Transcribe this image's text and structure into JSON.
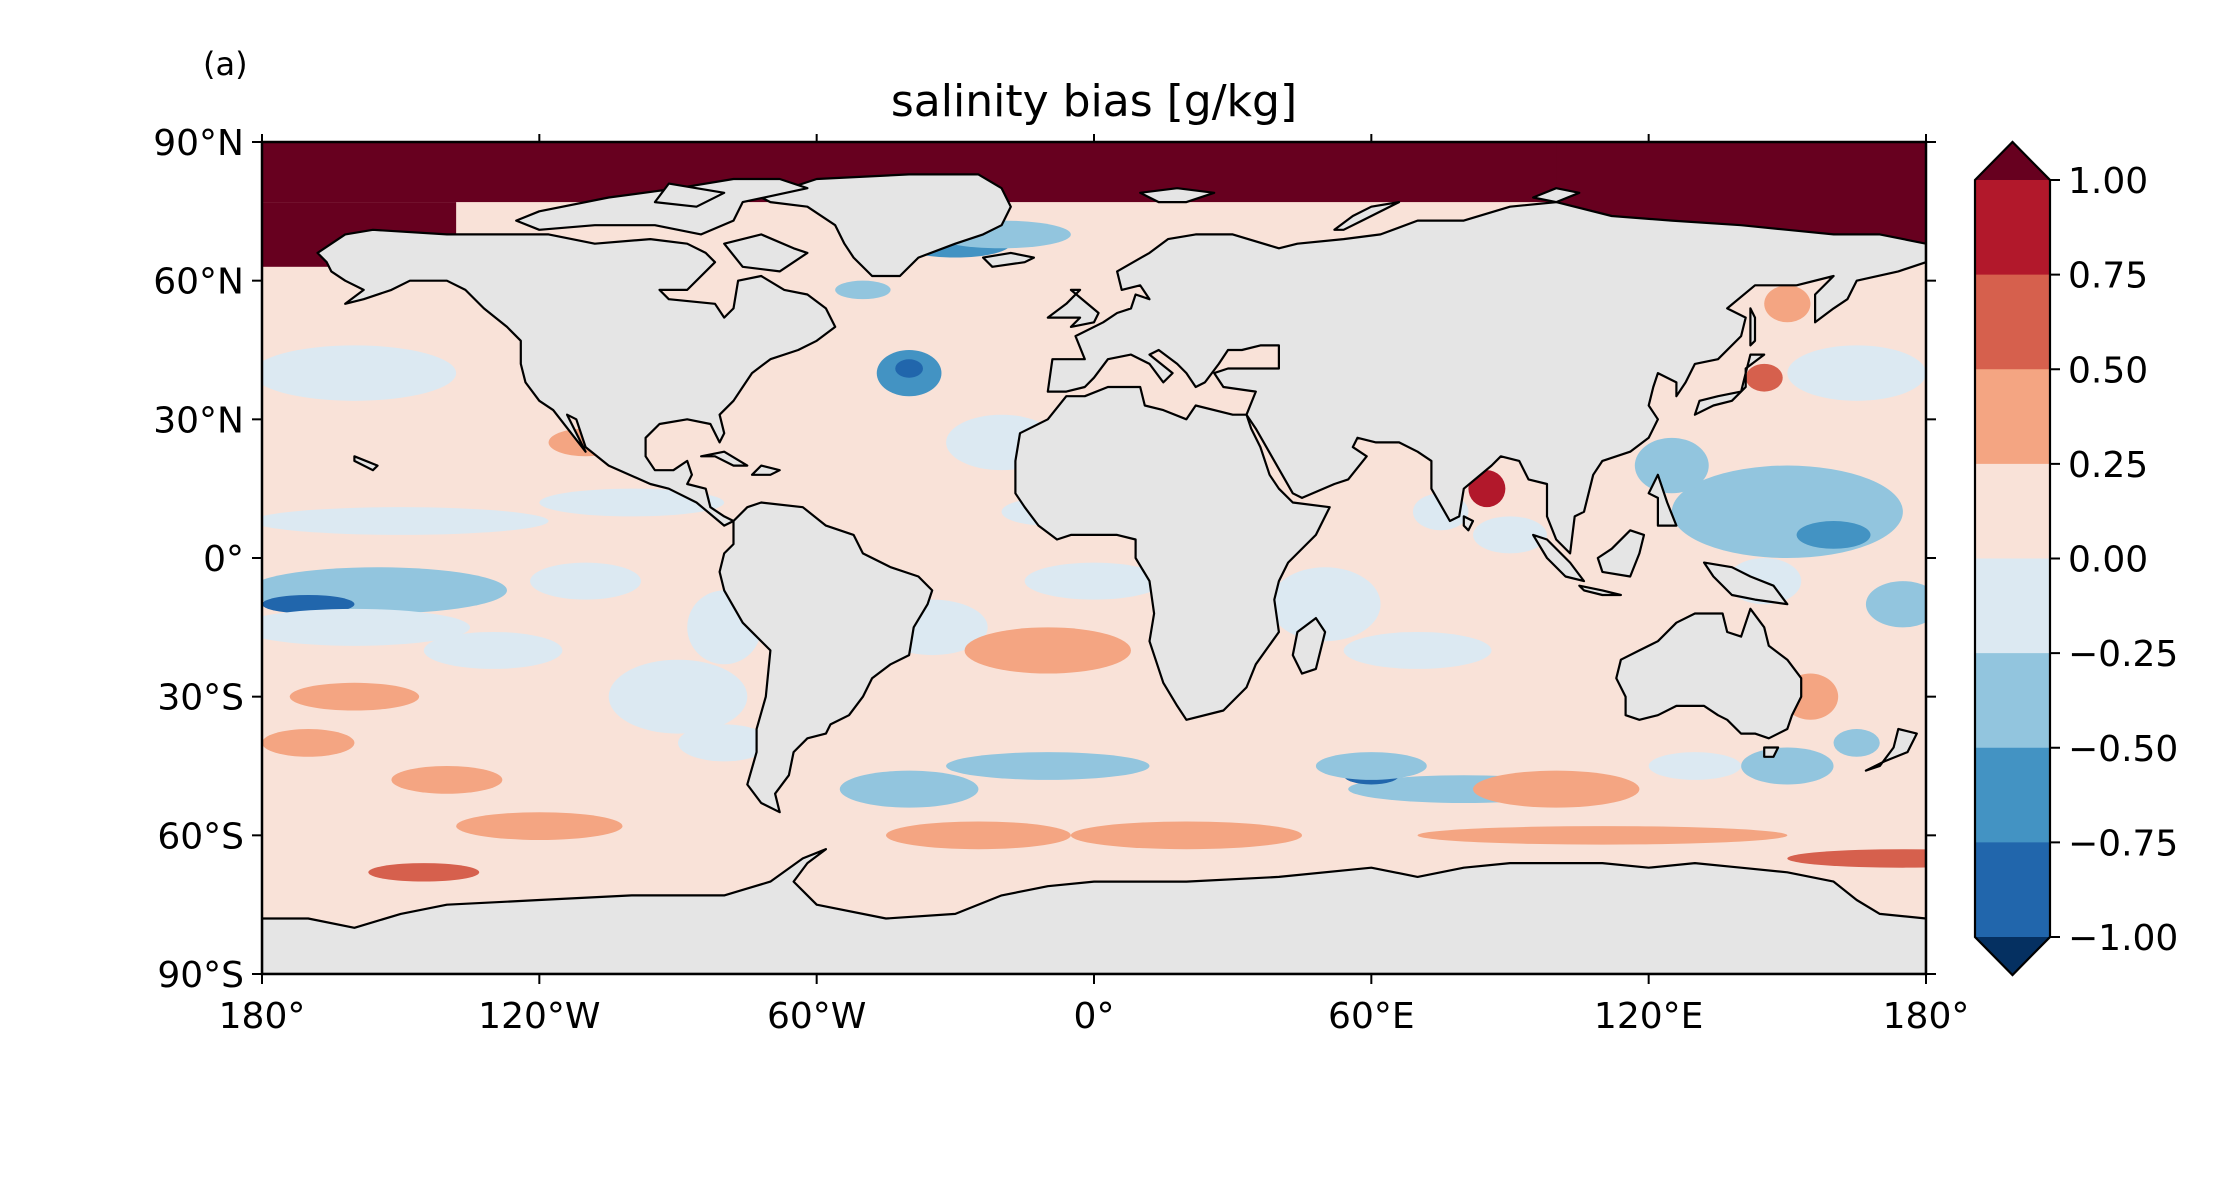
{
  "panel_label": "(a)",
  "title": "salinity bias [g/kg]",
  "map": {
    "projection": "PlateCarree",
    "lon_range": [
      -180,
      180
    ],
    "lat_range": [
      -90,
      90
    ],
    "land_color": "#e5e5e5",
    "coast_color": "#000000"
  },
  "axes": {
    "x_ticks": [
      {
        "lon": -180,
        "label": "180°"
      },
      {
        "lon": -120,
        "label": "120°W"
      },
      {
        "lon": -60,
        "label": "60°W"
      },
      {
        "lon": 0,
        "label": "0°"
      },
      {
        "lon": 60,
        "label": "60°E"
      },
      {
        "lon": 120,
        "label": "120°E"
      },
      {
        "lon": 180,
        "label": "180°"
      }
    ],
    "y_ticks": [
      {
        "lat": 90,
        "label": "90°N"
      },
      {
        "lat": 60,
        "label": "60°N"
      },
      {
        "lat": 30,
        "label": "30°N"
      },
      {
        "lat": 0,
        "label": "0°"
      },
      {
        "lat": -30,
        "label": "30°S"
      },
      {
        "lat": -60,
        "label": "60°S"
      },
      {
        "lat": -90,
        "label": "90°S"
      }
    ]
  },
  "colorbar": {
    "extend": "both",
    "colormap": "RdBu_r",
    "levels": [
      -1.0,
      -0.75,
      -0.5,
      -0.25,
      0.0,
      0.25,
      0.5,
      0.75,
      1.0
    ],
    "colors": [
      "#2166ac",
      "#4393c3",
      "#92c5de",
      "#dce9f2",
      "#f9e2d8",
      "#f4a582",
      "#d6604d",
      "#b2182b"
    ],
    "under_color": "#053061",
    "over_color": "#67001f",
    "tick_labels": [
      "1.00",
      "0.75",
      "0.50",
      "0.25",
      "0.00",
      "−0.25",
      "−0.50",
      "−0.75",
      "−1.00"
    ]
  }
}
